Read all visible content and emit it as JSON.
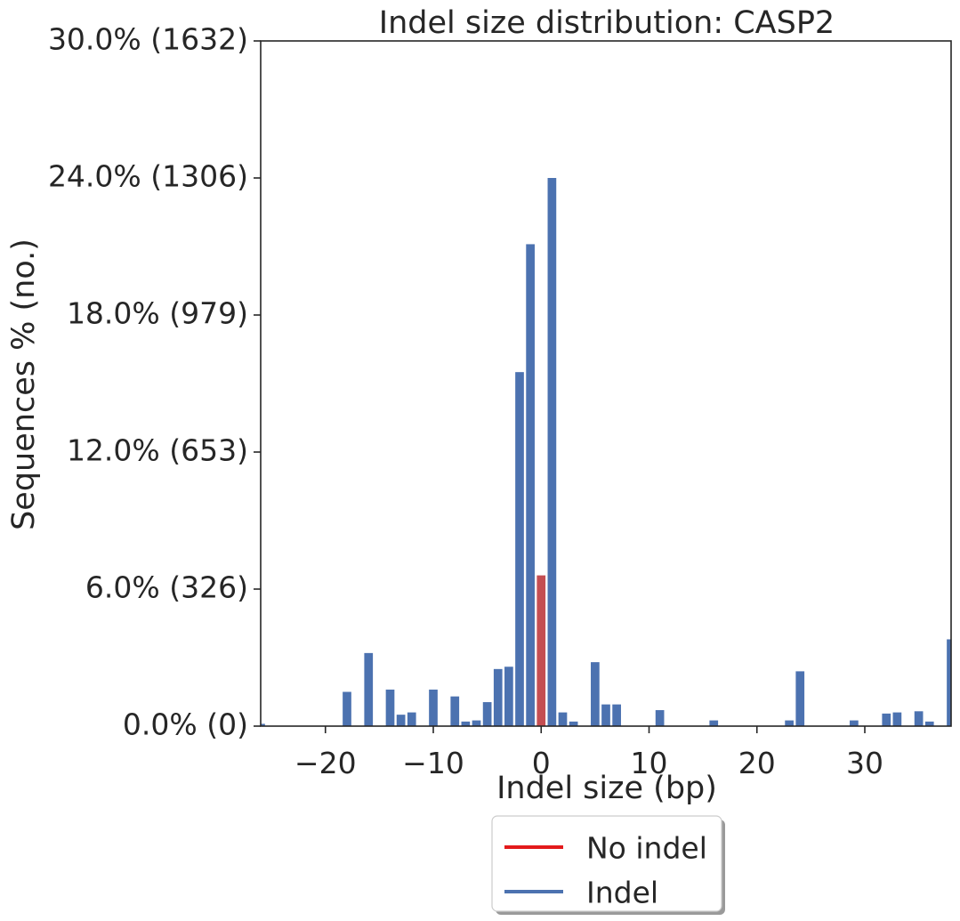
{
  "chart_data": {
    "type": "bar",
    "title": "Indel size distribution: CASP2",
    "xlabel": "Indel size (bp)",
    "ylabel": "Sequences % (no.)",
    "xlim": [
      -26,
      38
    ],
    "ylim": [
      0,
      30
    ],
    "x_ticks": [
      -20,
      -10,
      0,
      10,
      20,
      30
    ],
    "x_tick_labels": [
      "−20",
      "−10",
      "0",
      "10",
      "20",
      "30"
    ],
    "y_ticks": [
      0,
      6,
      12,
      18,
      24,
      30
    ],
    "y_tick_labels": [
      "0.0% (0)",
      "6.0% (326)",
      "12.0% (653)",
      "18.0% (979)",
      "24.0% (1306)",
      "30.0% (1632)"
    ],
    "grid": false,
    "legend_position": "bottom-center",
    "legend": [
      {
        "label": "No indel",
        "color": "#e31a1c"
      },
      {
        "label": "Indel",
        "color": "#4c72b0"
      }
    ],
    "bar_colors": {
      "indel": "#4c72b0",
      "no_indel": "#c44e52"
    },
    "series": [
      {
        "key": "indel",
        "x": [
          -26,
          -18,
          -16,
          -14,
          -13,
          -12,
          -10,
          -8,
          -7,
          -6,
          -5,
          -4,
          -3,
          -2,
          -1,
          1,
          2,
          3,
          5,
          6,
          7,
          11,
          16,
          23,
          24,
          29,
          32,
          33,
          35,
          36,
          38
        ],
        "values": [
          0.1,
          1.5,
          3.2,
          1.6,
          0.5,
          0.6,
          1.6,
          1.3,
          0.2,
          0.25,
          1.05,
          2.5,
          2.6,
          15.5,
          21.1,
          24.0,
          0.6,
          0.2,
          2.8,
          0.95,
          0.95,
          0.7,
          0.25,
          0.25,
          2.4,
          0.25,
          0.55,
          0.6,
          0.65,
          0.2,
          3.8
        ]
      },
      {
        "key": "no_indel",
        "x": [
          0
        ],
        "values": [
          6.6
        ]
      }
    ]
  }
}
